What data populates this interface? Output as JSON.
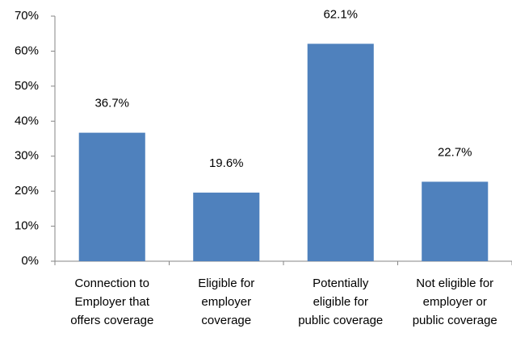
{
  "chart_data": {
    "type": "bar",
    "categories": [
      "Connection to\nEmployer that\noffers coverage",
      "Eligible for\nemployer\ncoverage",
      "Potentially\neligible for\npublic coverage",
      "Not eligible for\nemployer or\npublic coverage"
    ],
    "values": [
      36.7,
      19.6,
      62.1,
      22.7
    ],
    "value_labels": [
      "36.7%",
      "19.6%",
      "62.1%",
      "22.7%"
    ],
    "color": "#4f81bd",
    "ylim": [
      0,
      70
    ],
    "yticks": [
      {
        "value": 0,
        "label": "0%"
      },
      {
        "value": 10,
        "label": "10%"
      },
      {
        "value": 20,
        "label": "20%"
      },
      {
        "value": 30,
        "label": "30%"
      },
      {
        "value": 40,
        "label": "40%"
      },
      {
        "value": 50,
        "label": "50%"
      },
      {
        "value": 60,
        "label": "60%"
      },
      {
        "value": 70,
        "label": "70%"
      }
    ],
    "grid": false
  }
}
